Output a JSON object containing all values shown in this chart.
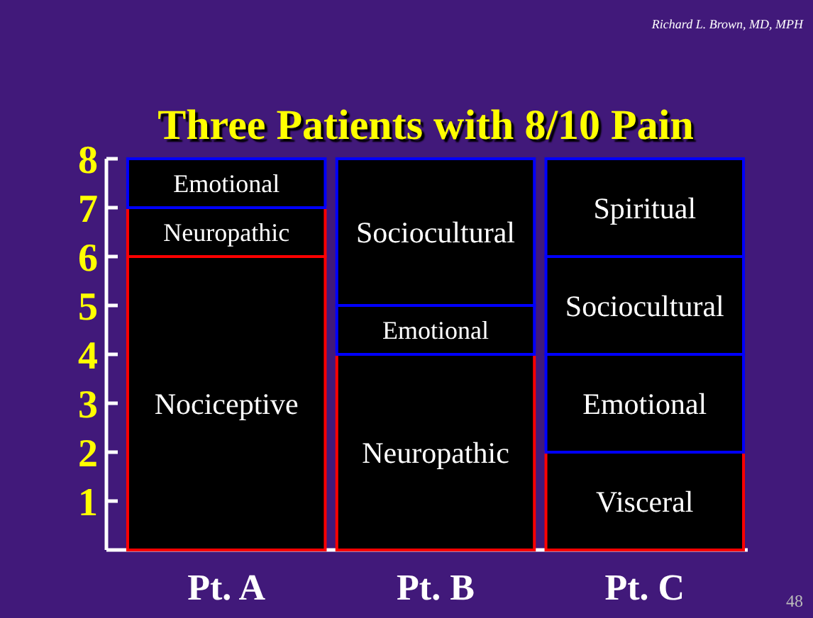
{
  "chart_data": {
    "type": "bar",
    "stacked": true,
    "title": "Three Patients with 8/10 Pain",
    "categories": [
      "Pt. A",
      "Pt. B",
      "Pt. C"
    ],
    "series": [
      {
        "color": "#000000",
        "colors": [
          "#ff0000",
          "#ff0000",
          "#ff0000"
        ],
        "values": [
          6,
          4,
          2
        ],
        "value_labels": [
          "Nociceptive",
          "Neuropathic",
          "Visceral"
        ]
      },
      {
        "color": "#000000",
        "colors": [
          "#ff0000",
          "#0000ff",
          "#0000ff"
        ],
        "values": [
          1,
          1,
          2
        ],
        "value_labels": [
          "Neuropathic",
          "Emotional",
          "Emotional"
        ]
      },
      {
        "color": "#000000",
        "colors": [
          "#0000ff",
          "#0000ff",
          "#0000ff"
        ],
        "values": [
          1,
          3,
          2
        ],
        "value_labels": [
          "Emotional",
          "Sociocultural",
          "Sociocultural"
        ]
      },
      {
        "color": "#000000",
        "colors": [
          null,
          null,
          "#0000ff"
        ],
        "values": [
          null,
          null,
          2
        ],
        "value_labels": [
          null,
          null,
          "Spiritual"
        ]
      }
    ],
    "ylim": [
      0,
      8
    ],
    "yticks": [
      1,
      2,
      3,
      4,
      5,
      6,
      7,
      8
    ],
    "annotations": [
      "Richard L. Brown, MD, MPH",
      "48"
    ]
  }
}
